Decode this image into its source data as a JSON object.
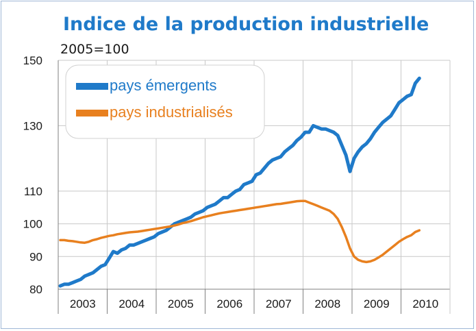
{
  "header": {
    "title": "Indice de la production industrielle",
    "subtitle": "2005=100"
  },
  "chart_data": {
    "type": "line",
    "title": "Indice de la production industrielle",
    "subtitle": "2005=100",
    "xlabel": "",
    "ylabel": "",
    "x_categories": [
      "2003",
      "2004",
      "2005",
      "2006",
      "2007",
      "2008",
      "2009",
      "2010"
    ],
    "yticks": [
      80,
      90,
      100,
      110,
      130,
      150
    ],
    "ylim": [
      80,
      150
    ],
    "grid": true,
    "legend_position": "top-left",
    "colors": {
      "emerging": "#1f7ac9",
      "industrial": "#e8801f",
      "grid": "#c8c8c8",
      "axis": "#7f7f7f",
      "title": "#1f7ac9"
    },
    "series": [
      {
        "name": "pays émergents",
        "x": [
          "2003-01",
          "2003-02",
          "2003-03",
          "2003-04",
          "2003-05",
          "2003-06",
          "2003-07",
          "2003-08",
          "2003-09",
          "2003-10",
          "2003-11",
          "2003-12",
          "2004-01",
          "2004-02",
          "2004-03",
          "2004-04",
          "2004-05",
          "2004-06",
          "2004-07",
          "2004-08",
          "2004-09",
          "2004-10",
          "2004-11",
          "2004-12",
          "2005-01",
          "2005-02",
          "2005-03",
          "2005-04",
          "2005-05",
          "2005-06",
          "2005-07",
          "2005-08",
          "2005-09",
          "2005-10",
          "2005-11",
          "2005-12",
          "2006-01",
          "2006-02",
          "2006-03",
          "2006-04",
          "2006-05",
          "2006-06",
          "2006-07",
          "2006-08",
          "2006-09",
          "2006-10",
          "2006-11",
          "2006-12",
          "2007-01",
          "2007-02",
          "2007-03",
          "2007-04",
          "2007-05",
          "2007-06",
          "2007-07",
          "2007-08",
          "2007-09",
          "2007-10",
          "2007-11",
          "2007-12",
          "2008-01",
          "2008-02",
          "2008-03",
          "2008-04",
          "2008-05",
          "2008-06",
          "2008-07",
          "2008-08",
          "2008-09",
          "2008-10",
          "2008-11",
          "2008-12",
          "2009-01",
          "2009-02",
          "2009-03",
          "2009-04",
          "2009-05",
          "2009-06",
          "2009-07",
          "2009-08",
          "2009-09",
          "2009-10",
          "2009-11",
          "2009-12",
          "2010-01",
          "2010-02",
          "2010-03",
          "2010-04",
          "2010-05"
        ],
        "values": [
          81,
          81.5,
          81.5,
          82,
          82.5,
          83,
          84,
          84.5,
          85,
          86,
          87,
          87.5,
          89.5,
          91.5,
          91,
          92,
          92.5,
          93.5,
          93.5,
          94,
          94.5,
          95,
          95.5,
          96,
          97,
          97.5,
          98,
          99,
          100,
          100.5,
          101,
          101.5,
          102,
          103,
          103.5,
          104,
          105,
          105.5,
          106,
          107,
          108,
          108,
          109,
          110,
          110.5,
          112,
          112.5,
          113,
          115,
          115.5,
          117,
          118.5,
          119.5,
          120,
          120.5,
          122,
          123,
          124,
          125.5,
          126.5,
          128,
          128,
          130,
          129.5,
          129,
          129,
          128.5,
          128,
          127,
          124,
          121,
          116,
          120,
          122,
          123.5,
          124.5,
          126,
          128,
          129.5,
          131,
          132,
          133,
          135,
          137,
          138,
          139,
          139.5,
          143,
          144.5
        ]
      },
      {
        "name": "pays industrialisés",
        "x": [
          "2003-01",
          "2003-02",
          "2003-03",
          "2003-04",
          "2003-05",
          "2003-06",
          "2003-07",
          "2003-08",
          "2003-09",
          "2003-10",
          "2003-11",
          "2003-12",
          "2004-01",
          "2004-02",
          "2004-03",
          "2004-04",
          "2004-05",
          "2004-06",
          "2004-07",
          "2004-08",
          "2004-09",
          "2004-10",
          "2004-11",
          "2004-12",
          "2005-01",
          "2005-02",
          "2005-03",
          "2005-04",
          "2005-05",
          "2005-06",
          "2005-07",
          "2005-08",
          "2005-09",
          "2005-10",
          "2005-11",
          "2005-12",
          "2006-01",
          "2006-02",
          "2006-03",
          "2006-04",
          "2006-05",
          "2006-06",
          "2006-07",
          "2006-08",
          "2006-09",
          "2006-10",
          "2006-11",
          "2006-12",
          "2007-01",
          "2007-02",
          "2007-03",
          "2007-04",
          "2007-05",
          "2007-06",
          "2007-07",
          "2007-08",
          "2007-09",
          "2007-10",
          "2007-11",
          "2007-12",
          "2008-01",
          "2008-02",
          "2008-03",
          "2008-04",
          "2008-05",
          "2008-06",
          "2008-07",
          "2008-08",
          "2008-09",
          "2008-10",
          "2008-11",
          "2008-12",
          "2009-01",
          "2009-02",
          "2009-03",
          "2009-04",
          "2009-05",
          "2009-06",
          "2009-07",
          "2009-08",
          "2009-09",
          "2009-10",
          "2009-11",
          "2009-12",
          "2010-01",
          "2010-02",
          "2010-03",
          "2010-04",
          "2010-05"
        ],
        "values": [
          95,
          95,
          94.8,
          94.7,
          94.5,
          94.3,
          94.2,
          94.5,
          95,
          95.3,
          95.7,
          96,
          96.3,
          96.5,
          96.8,
          97,
          97.2,
          97.4,
          97.5,
          97.6,
          97.8,
          98,
          98.2,
          98.4,
          98.6,
          98.8,
          99,
          99.2,
          99.5,
          99.8,
          100.2,
          100.5,
          100.8,
          101.2,
          101.6,
          102,
          102.3,
          102.6,
          102.9,
          103.2,
          103.4,
          103.6,
          103.8,
          104,
          104.2,
          104.4,
          104.6,
          104.8,
          105,
          105.2,
          105.4,
          105.6,
          105.8,
          106,
          106.1,
          106.3,
          106.5,
          106.7,
          106.9,
          107,
          107,
          106.5,
          106,
          105.5,
          105,
          104.5,
          104,
          103,
          101.5,
          99,
          96,
          92.5,
          90,
          89,
          88.5,
          88.3,
          88.5,
          89,
          89.7,
          90.5,
          91.5,
          92.5,
          93.5,
          94.5,
          95.3,
          96,
          96.5,
          97.5,
          98
        ]
      }
    ]
  }
}
